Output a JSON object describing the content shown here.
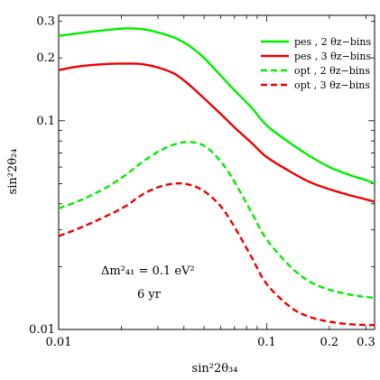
{
  "chart_data": {
    "type": "line",
    "xlabel": "sin²2θ₃₄",
    "ylabel": "sin²2θ₂₄",
    "xscale": "log",
    "yscale": "log",
    "xlim": [
      0.01,
      0.33
    ],
    "ylim": [
      0.01,
      0.32
    ],
    "grid": false,
    "legend_placement": "top-right",
    "x_ticks": [
      {
        "value": 0.01,
        "label": "0.01"
      },
      {
        "value": 0.1,
        "label": "0.1"
      },
      {
        "value": 0.2,
        "label": "0.2"
      },
      {
        "value": 0.3,
        "label": "0.3"
      }
    ],
    "y_ticks": [
      {
        "value": 0.01,
        "label": "0.01"
      },
      {
        "value": 0.1,
        "label": "0.1"
      },
      {
        "value": 0.2,
        "label": "0.2"
      },
      {
        "value": 0.3,
        "label": "0.3"
      }
    ],
    "annotations": [
      "Δm²₄₁ = 0.1 eV²",
      "6 yr"
    ],
    "series": [
      {
        "name": "pes , 2 θz−bins",
        "color": "#00ee00",
        "dash": "solid",
        "x": [
          0.01,
          0.013,
          0.017,
          0.021,
          0.025,
          0.03,
          0.036,
          0.042,
          0.05,
          0.06,
          0.07,
          0.085,
          0.1,
          0.13,
          0.16,
          0.2,
          0.25,
          0.3,
          0.33
        ],
        "y": [
          0.255,
          0.264,
          0.272,
          0.277,
          0.275,
          0.265,
          0.25,
          0.23,
          0.2,
          0.165,
          0.14,
          0.115,
          0.095,
          0.078,
          0.068,
          0.06,
          0.055,
          0.052,
          0.05
        ]
      },
      {
        "name": "pes , 3 θz−bins",
        "color": "#ee0000",
        "dash": "solid",
        "x": [
          0.01,
          0.013,
          0.017,
          0.021,
          0.025,
          0.03,
          0.036,
          0.042,
          0.05,
          0.06,
          0.07,
          0.085,
          0.1,
          0.13,
          0.16,
          0.2,
          0.25,
          0.3,
          0.33
        ],
        "y": [
          0.175,
          0.183,
          0.187,
          0.188,
          0.187,
          0.18,
          0.168,
          0.15,
          0.128,
          0.108,
          0.093,
          0.078,
          0.067,
          0.057,
          0.051,
          0.047,
          0.044,
          0.042,
          0.041
        ]
      },
      {
        "name": "opt , 2 θz−bins",
        "color": "#00ee00",
        "dash": "dashed",
        "x": [
          0.01,
          0.013,
          0.017,
          0.021,
          0.025,
          0.03,
          0.036,
          0.042,
          0.05,
          0.06,
          0.07,
          0.085,
          0.1,
          0.13,
          0.16,
          0.2,
          0.25,
          0.3,
          0.33
        ],
        "y": [
          0.038,
          0.042,
          0.048,
          0.055,
          0.063,
          0.071,
          0.077,
          0.079,
          0.076,
          0.064,
          0.051,
          0.036,
          0.027,
          0.02,
          0.017,
          0.0155,
          0.0147,
          0.0143,
          0.0142
        ]
      },
      {
        "name": "opt , 3 θz−bins",
        "color": "#ee0000",
        "dash": "dashed",
        "x": [
          0.01,
          0.013,
          0.017,
          0.021,
          0.025,
          0.03,
          0.036,
          0.042,
          0.05,
          0.06,
          0.07,
          0.085,
          0.1,
          0.13,
          0.16,
          0.2,
          0.25,
          0.3,
          0.33
        ],
        "y": [
          0.028,
          0.031,
          0.035,
          0.039,
          0.044,
          0.048,
          0.05,
          0.0495,
          0.046,
          0.039,
          0.031,
          0.022,
          0.0165,
          0.0128,
          0.0115,
          0.0109,
          0.0106,
          0.0105,
          0.0105
        ]
      }
    ]
  }
}
